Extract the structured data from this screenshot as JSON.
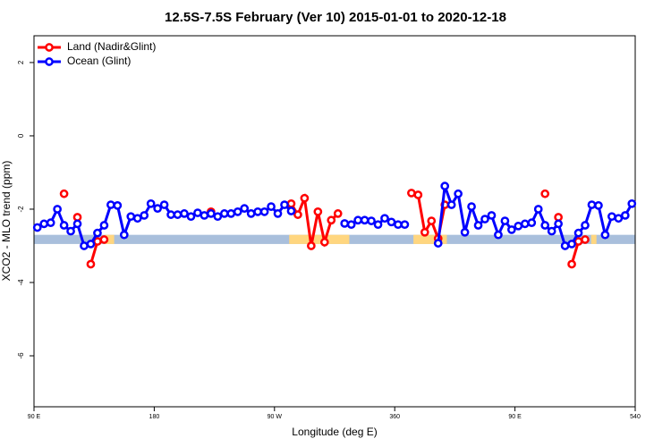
{
  "chart_data": {
    "type": "line",
    "title": "12.5S-7.5S February (Ver 10)   2015-01-01 to 2020-12-18",
    "x_label": "Longitude (deg E)",
    "y_label": "XCO2 - MLO trend (ppm)",
    "x": [
      92.5,
      97.5,
      102.5,
      107.5,
      112.5,
      117.5,
      122.5,
      127.5,
      132.5,
      137.5,
      142.5,
      147.5,
      152.5,
      157.5,
      162.5,
      167.5,
      172.5,
      177.5,
      182.5,
      187.5,
      192.5,
      197.5,
      202.5,
      207.5,
      212.5,
      217.5,
      222.5,
      227.5,
      232.5,
      237.5,
      242.5,
      247.5,
      252.5,
      257.5,
      262.5,
      267.5,
      272.5,
      277.5,
      282.5,
      287.5,
      292.5,
      297.5,
      302.5,
      307.5,
      312.5,
      317.5,
      322.5,
      327.5,
      332.5,
      337.5,
      342.5,
      347.5,
      352.5,
      357.5,
      362.5,
      367.5,
      372.5,
      377.5,
      382.5,
      387.5,
      392.5,
      397.5,
      402.5,
      407.5,
      412.5,
      417.5,
      422.5,
      427.5,
      432.5,
      437.5,
      442.5,
      447.5,
      452.5,
      457.5,
      462.5,
      467.5,
      472.5,
      477.5,
      482.5,
      487.5,
      492.5,
      497.5,
      502.5,
      507.5,
      512.5,
      517.5,
      522.5,
      527.5,
      532.5,
      537.5
    ],
    "series": [
      {
        "name": "Land (Nadir&Glint)",
        "color": "#ff0000",
        "values": [
          null,
          null,
          null,
          null,
          -1.58,
          null,
          -2.22,
          null,
          -3.5,
          -2.88,
          -2.83,
          null,
          null,
          null,
          null,
          null,
          null,
          null,
          null,
          null,
          null,
          null,
          null,
          null,
          null,
          null,
          -2.07,
          null,
          null,
          null,
          null,
          null,
          null,
          null,
          null,
          null,
          null,
          null,
          -1.85,
          -2.15,
          -1.7,
          -3.0,
          -2.07,
          -2.9,
          -2.3,
          -2.12,
          null,
          null,
          null,
          null,
          null,
          null,
          null,
          null,
          null,
          null,
          -1.56,
          -1.61,
          -2.63,
          -2.32,
          -2.8,
          -1.88,
          null,
          null,
          null,
          null,
          null,
          null,
          null,
          null,
          null,
          null,
          null,
          null,
          null,
          null,
          -1.58,
          null,
          -2.22,
          null,
          -3.5,
          -2.88,
          -2.83,
          null,
          null,
          null,
          null,
          null,
          null,
          null
        ]
      },
      {
        "name": "Ocean (Glint)",
        "color": "#0000ff",
        "values": [
          -2.5,
          -2.4,
          -2.37,
          -2.0,
          -2.44,
          -2.6,
          -2.4,
          -3.0,
          -2.95,
          -2.65,
          -2.44,
          -1.88,
          -1.9,
          -2.7,
          -2.2,
          -2.25,
          -2.17,
          -1.85,
          -1.98,
          -1.88,
          -2.15,
          -2.15,
          -2.12,
          -2.2,
          -2.1,
          -2.17,
          -2.12,
          -2.2,
          -2.12,
          -2.12,
          -2.07,
          -1.98,
          -2.12,
          -2.07,
          -2.07,
          -1.93,
          -2.12,
          -1.88,
          -2.05,
          null,
          null,
          null,
          null,
          null,
          null,
          null,
          -2.39,
          -2.42,
          -2.3,
          -2.3,
          -2.32,
          -2.42,
          -2.25,
          -2.35,
          -2.42,
          -2.42,
          null,
          null,
          null,
          null,
          -2.93,
          -1.37,
          -1.88,
          -1.58,
          -2.63,
          -1.93,
          -2.44,
          -2.27,
          -2.17,
          -2.7,
          -2.32,
          -2.56,
          -2.46,
          -2.4,
          -2.37,
          -2.0,
          -2.44,
          -2.6,
          -2.4,
          -3.0,
          -2.95,
          -2.65,
          -2.44,
          -1.88,
          -1.9,
          -2.7,
          -2.2,
          -2.25,
          -2.17,
          -1.85
        ]
      }
    ],
    "band": {
      "range": [
        -2.7,
        -2.95
      ],
      "color": "#a9bfdc"
    },
    "highlights": {
      "color": "#ffd67f",
      "ranges": [
        [
          143,
          150
        ],
        [
          281,
          326
        ],
        [
          374,
          399
        ],
        [
          507,
          511
        ]
      ]
    },
    "xlim": [
      90,
      540
    ],
    "xticks": [
      {
        "value": 90,
        "label": "90 E"
      },
      180,
      {
        "value": 270,
        "label": "90 W"
      },
      360,
      {
        "value": 450,
        "label": "90 E"
      },
      540
    ],
    "ylim": [
      -7.39,
      2.73
    ],
    "yticks": [
      -6,
      -4,
      -2,
      0,
      2
    ],
    "legend": "top-left"
  }
}
